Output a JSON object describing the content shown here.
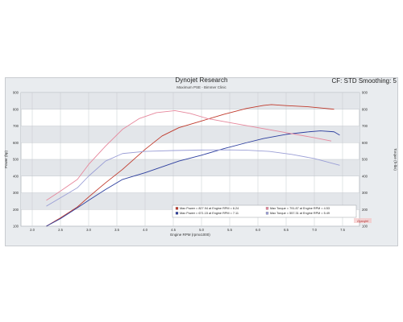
{
  "header": {
    "title": "Dynojet Research",
    "subtitle": "Maximum PSE - Bimmer Clinic",
    "cf_label": "CF: STD Smoothing: 5"
  },
  "chart_data": {
    "type": "line",
    "title": "Dynojet Research",
    "subtitle": "Maximum PSE - Bimmer Clinic",
    "xlabel": "Engine RPM (rpmx1000)",
    "ylabel_left": "Power (hp)",
    "ylabel_right": "Torque (ft-lbs)",
    "xlim": [
      1.8,
      7.8
    ],
    "ylim": [
      100,
      900
    ],
    "xticks": [
      "2.0",
      "2.5",
      "3.0",
      "3.5",
      "4.0",
      "4.5",
      "5.0",
      "5.5",
      "6.0",
      "6.5",
      "7.0",
      "7.5"
    ],
    "yticks_left": [
      "100",
      "200",
      "300",
      "400",
      "500",
      "600",
      "700",
      "800",
      "900"
    ],
    "yticks_right": [
      "100",
      "200",
      "300",
      "400",
      "500",
      "600",
      "700",
      "800",
      "900"
    ],
    "grid": true,
    "series": [
      {
        "name": "Max Power = 827.94 at Engine RPM = 6.24",
        "type": "power",
        "color": "#c0392b",
        "x": [
          2.25,
          2.5,
          2.8,
          3.0,
          3.3,
          3.6,
          4.0,
          4.3,
          4.6,
          5.0,
          5.4,
          5.8,
          6.1,
          6.24,
          6.5,
          6.9,
          7.2,
          7.35
        ],
        "y": [
          100,
          150,
          215,
          275,
          360,
          440,
          560,
          640,
          690,
          730,
          770,
          805,
          823,
          828,
          822,
          815,
          805,
          800
        ]
      },
      {
        "name": "Max Power = 671.15 at Engine RPM = 7.11",
        "type": "power",
        "color": "#2c3e9e",
        "x": [
          2.25,
          2.5,
          2.8,
          3.0,
          3.3,
          3.6,
          4.0,
          4.3,
          4.6,
          5.0,
          5.4,
          5.8,
          6.1,
          6.5,
          6.9,
          7.11,
          7.35,
          7.45
        ],
        "y": [
          100,
          145,
          210,
          255,
          320,
          380,
          420,
          455,
          490,
          525,
          565,
          600,
          625,
          650,
          665,
          671,
          665,
          645
        ]
      },
      {
        "name": "Max Torque = 791.87 at Engine RPM = 4.53",
        "type": "torque",
        "color": "#e6879c",
        "x": [
          2.25,
          2.5,
          2.8,
          3.0,
          3.3,
          3.6,
          3.9,
          4.2,
          4.53,
          4.8,
          5.1,
          5.5,
          6.0,
          6.5,
          7.0,
          7.3
        ],
        "y": [
          255,
          310,
          380,
          470,
          580,
          680,
          745,
          780,
          792,
          775,
          745,
          720,
          690,
          660,
          630,
          610
        ]
      },
      {
        "name": "Max Torque = 557.31 at Engine RPM = 5.49",
        "type": "torque",
        "color": "#9b9fd6",
        "x": [
          2.25,
          2.5,
          2.8,
          3.0,
          3.3,
          3.6,
          4.0,
          4.5,
          5.0,
          5.49,
          5.8,
          6.2,
          6.6,
          7.0,
          7.45
        ],
        "y": [
          220,
          270,
          330,
          400,
          490,
          535,
          548,
          553,
          556,
          557,
          555,
          548,
          530,
          505,
          465
        ]
      }
    ],
    "legend": {
      "placement": "bottom-center",
      "entries": [
        "Max Power = 827.94 at Engine RPM = 6.24",
        "Max Torque = 791.87 at Engine RPM = 4.53",
        "Max Power = 671.15 at Engine RPM = 7.11",
        "Max Torque = 557.31 at Engine RPM = 5.49"
      ]
    },
    "watermark": "Dynojet"
  }
}
